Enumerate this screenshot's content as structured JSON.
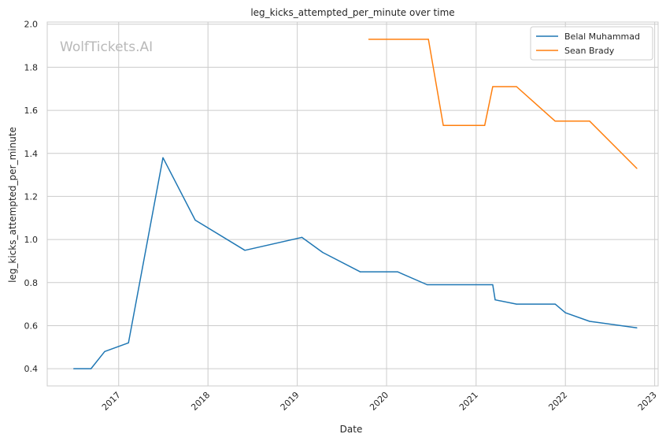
{
  "chart_data": {
    "type": "line",
    "title": "leg_kicks_attempted_per_minute over time",
    "xlabel": "Date",
    "ylabel": "leg_kicks_attempted_per_minute",
    "watermark": "WolfTickets.AI",
    "xlim": [
      "2016-03-15",
      "2023-01-15"
    ],
    "ylim": [
      0.32,
      2.01
    ],
    "x_ticks": [
      {
        "date": "2017-01-01",
        "label": "2017"
      },
      {
        "date": "2018-01-01",
        "label": "2018"
      },
      {
        "date": "2019-01-01",
        "label": "2019"
      },
      {
        "date": "2020-01-01",
        "label": "2020"
      },
      {
        "date": "2021-01-01",
        "label": "2021"
      },
      {
        "date": "2022-01-01",
        "label": "2022"
      },
      {
        "date": "2023-01-01",
        "label": "2023"
      }
    ],
    "y_ticks": [
      "0.4",
      "0.6",
      "0.8",
      "1.0",
      "1.2",
      "1.4",
      "1.6",
      "1.8",
      "2.0"
    ],
    "grid": true,
    "legend_position": "top-right",
    "series": [
      {
        "name": "Belal Muhammad",
        "color": "#1f77b4",
        "points": [
          [
            "2016-07-01",
            0.4
          ],
          [
            "2016-09-10",
            0.4
          ],
          [
            "2016-11-05",
            0.48
          ],
          [
            "2017-02-10",
            0.52
          ],
          [
            "2017-07-01",
            1.38
          ],
          [
            "2017-11-10",
            1.09
          ],
          [
            "2018-06-01",
            0.95
          ],
          [
            "2019-01-20",
            1.01
          ],
          [
            "2019-04-15",
            0.94
          ],
          [
            "2019-09-15",
            0.85
          ],
          [
            "2020-02-15",
            0.85
          ],
          [
            "2020-06-15",
            0.79
          ],
          [
            "2021-03-10",
            0.79
          ],
          [
            "2021-03-20",
            0.72
          ],
          [
            "2021-06-15",
            0.7
          ],
          [
            "2021-11-20",
            0.7
          ],
          [
            "2022-01-01",
            0.66
          ],
          [
            "2022-04-10",
            0.62
          ],
          [
            "2022-10-20",
            0.59
          ]
        ]
      },
      {
        "name": "Sean Brady",
        "color": "#ff7f0e",
        "points": [
          [
            "2019-10-20",
            1.93
          ],
          [
            "2020-06-20",
            1.93
          ],
          [
            "2020-08-20",
            1.53
          ],
          [
            "2021-02-05",
            1.53
          ],
          [
            "2021-03-10",
            1.71
          ],
          [
            "2021-06-15",
            1.71
          ],
          [
            "2021-11-20",
            1.55
          ],
          [
            "2022-04-10",
            1.55
          ],
          [
            "2022-10-20",
            1.33
          ]
        ]
      }
    ]
  }
}
